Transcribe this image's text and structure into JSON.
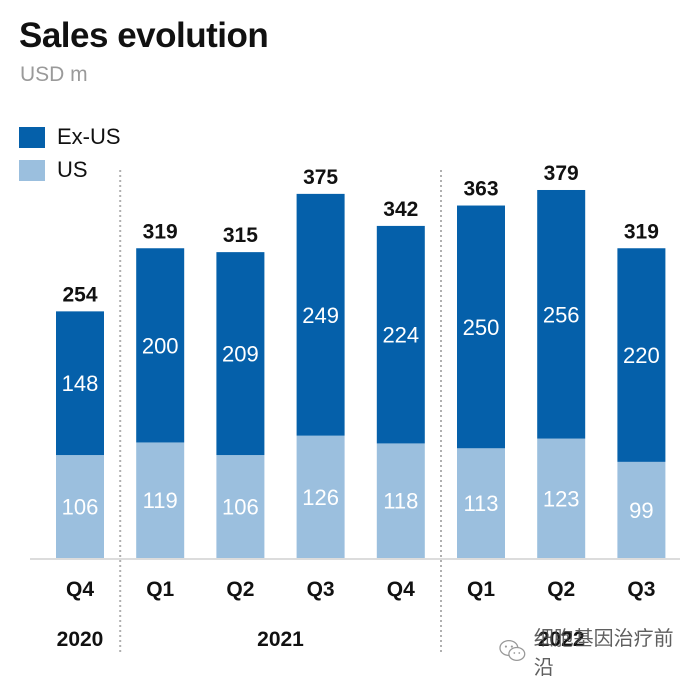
{
  "header": {
    "title": "Sales evolution",
    "subtitle": "USD m"
  },
  "legend": [
    {
      "label": "Ex-US",
      "color": "#0560AA"
    },
    {
      "label": "US",
      "color": "#9BBFDE"
    }
  ],
  "watermark": {
    "icon": "wechat-icon",
    "text": "细胞基因治疗前沿"
  },
  "chart_data": {
    "type": "bar",
    "stacked": true,
    "title": "Sales evolution",
    "subtitle": "USD m",
    "xlabel": "",
    "ylabel": "USD m",
    "ylim": [
      0,
      390
    ],
    "grid": false,
    "legend_position": "top-left",
    "categories": [
      "Q4",
      "Q1",
      "Q2",
      "Q3",
      "Q4",
      "Q1",
      "Q2",
      "Q3"
    ],
    "year_groups": [
      {
        "label": "2020",
        "start": 0,
        "end": 0
      },
      {
        "label": "2021",
        "start": 1,
        "end": 4
      },
      {
        "label": "2022",
        "start": 5,
        "end": 7
      }
    ],
    "series": [
      {
        "name": "US",
        "color": "#9BBFDE",
        "values": [
          106,
          119,
          106,
          126,
          118,
          113,
          123,
          99
        ]
      },
      {
        "name": "Ex-US",
        "color": "#0560AA",
        "values": [
          148,
          200,
          209,
          249,
          224,
          250,
          256,
          220
        ]
      }
    ],
    "totals": [
      254,
      319,
      315,
      375,
      342,
      363,
      379,
      319
    ]
  }
}
